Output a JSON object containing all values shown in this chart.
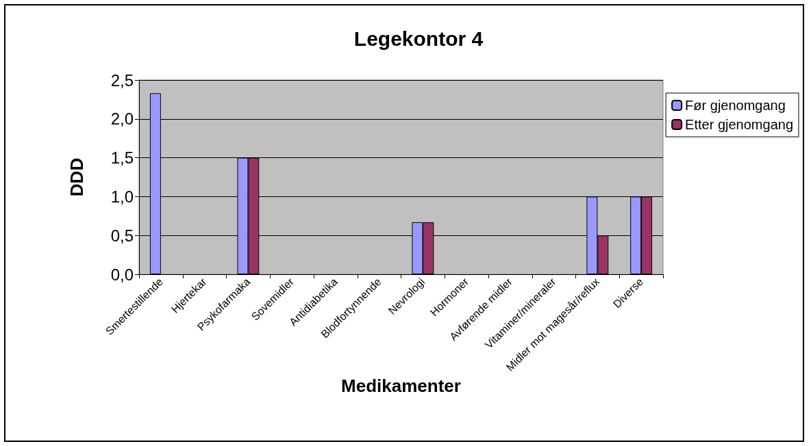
{
  "chart_data": {
    "type": "bar",
    "title": "Legekontor 4",
    "xlabel": "Medikamenter",
    "ylabel": "DDD",
    "categories": [
      "Smertestillende",
      "Hjertekar",
      "Psykofarmaka",
      "Sovemidler",
      "Antidiabetika",
      "Blodfortynnende",
      "Nevrologi",
      "Hormoner",
      "Avførende midler",
      "Vitaminer/mineraler",
      "Midler mot magesår/reflux",
      "Diverse"
    ],
    "series": [
      {
        "name": "Før gjenomgang",
        "color": "#9999ff",
        "values": [
          2.33,
          null,
          1.5,
          null,
          null,
          null,
          0.67,
          null,
          null,
          null,
          1.0,
          1.0
        ]
      },
      {
        "name": "Etter gjenomgang",
        "color": "#993366",
        "values": [
          null,
          null,
          1.5,
          null,
          null,
          null,
          0.67,
          null,
          null,
          null,
          0.5,
          1.0
        ]
      }
    ],
    "ylim": [
      0,
      2.5
    ],
    "yticks": [
      {
        "value": 0,
        "label": "0,0"
      },
      {
        "value": 0.5,
        "label": "0,5"
      },
      {
        "value": 1,
        "label": "1,0"
      },
      {
        "value": 1.5,
        "label": "1,5"
      },
      {
        "value": 2,
        "label": "2,0"
      },
      {
        "value": 2.5,
        "label": "2,5"
      }
    ],
    "grid": "y",
    "legend": "top right"
  }
}
